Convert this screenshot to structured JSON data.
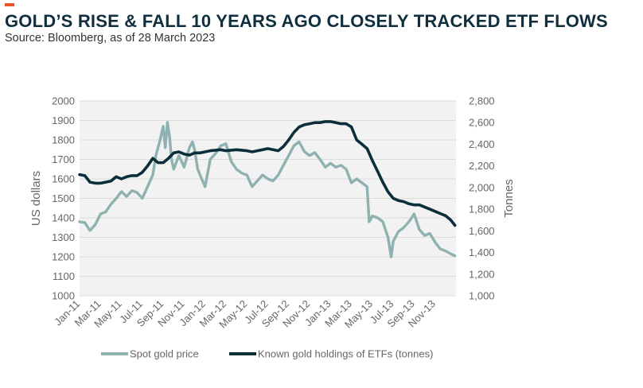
{
  "header": {
    "title": "GOLD’S RISE & FALL 10 YEARS AGO CLOSELY TRACKED ETF FLOWS",
    "subtitle": "Source: Bloomberg, as of 28 March 2023"
  },
  "colors": {
    "accent": "#e5542a",
    "title": "#0f2e3e",
    "text": "#333333",
    "tick": "#666666",
    "plot_bg": "#f2f2f2",
    "grid": "#dcdcdc",
    "gold_series": "#8fb1b0",
    "etf_series": "#0b2f3a"
  },
  "chart_data": {
    "type": "line",
    "title": "GOLD’S RISE & FALL 10 YEARS AGO CLOSELY TRACKED ETF FLOWS",
    "xlabel": "",
    "ylabel": "US dollars",
    "y2label": "Tonnes",
    "ylim": [
      1000,
      2000
    ],
    "y2lim": [
      1000,
      2800
    ],
    "yticks": [
      "1000",
      "1100",
      "1200",
      "1300",
      "1400",
      "1500",
      "1600",
      "1700",
      "1800",
      "1900",
      "2000"
    ],
    "y2ticks": [
      "1,000",
      "1,200",
      "1,400",
      "1,600",
      "1,800",
      "2,000",
      "2,200",
      "2,400",
      "2,600",
      "2,800"
    ],
    "xlim": [
      0,
      36
    ],
    "xticks": [
      "Jan-11",
      "Mar-11",
      "May-11",
      "Jul-11",
      "Sep-11",
      "Nov-11",
      "Jan-12",
      "Mar-12",
      "May-12",
      "Jul-12",
      "Sep-12",
      "Nov-12",
      "Jan-13",
      "Mar-13",
      "May-13",
      "Jul-13",
      "Sep-13",
      "Nov-13"
    ],
    "grid": true,
    "legend_position": "bottom",
    "series": [
      {
        "name": "Spot gold price",
        "axis": "left",
        "x": [
          0,
          0.5,
          1,
          1.5,
          2,
          2.5,
          3,
          3.5,
          4,
          4.5,
          5,
          5.5,
          6,
          6.5,
          7,
          7.3,
          7.7,
          8,
          8.2,
          8.4,
          8.6,
          8.8,
          9,
          9.5,
          10,
          10.5,
          10.8,
          11,
          11.3,
          11.6,
          12,
          12.5,
          13,
          13.5,
          14,
          14.5,
          15,
          15.5,
          16,
          16.5,
          17,
          17.5,
          18,
          18.5,
          19,
          19.5,
          20,
          20.5,
          21,
          21.5,
          22,
          22.5,
          23,
          23.5,
          24,
          24.5,
          25,
          25.5,
          26,
          26.5,
          27,
          27.5,
          27.7,
          28,
          28.5,
          29,
          29.5,
          29.8,
          30,
          30.5,
          31,
          31.5,
          32,
          32.5,
          33,
          33.5,
          34,
          34.5,
          35,
          35.5,
          35.9
        ],
        "values": [
          1380,
          1375,
          1335,
          1365,
          1420,
          1430,
          1470,
          1500,
          1535,
          1510,
          1540,
          1530,
          1500,
          1560,
          1620,
          1720,
          1800,
          1870,
          1760,
          1890,
          1820,
          1700,
          1650,
          1720,
          1660,
          1760,
          1790,
          1750,
          1650,
          1610,
          1560,
          1700,
          1730,
          1770,
          1780,
          1690,
          1650,
          1630,
          1620,
          1560,
          1590,
          1620,
          1600,
          1590,
          1620,
          1670,
          1720,
          1770,
          1790,
          1740,
          1720,
          1735,
          1700,
          1660,
          1680,
          1660,
          1670,
          1650,
          1580,
          1600,
          1580,
          1560,
          1380,
          1410,
          1400,
          1380,
          1300,
          1200,
          1280,
          1330,
          1350,
          1380,
          1420,
          1340,
          1310,
          1320,
          1275,
          1240,
          1230,
          1215,
          1205
        ]
      },
      {
        "name": "Known gold holdings of ETFs (tonnes)",
        "axis": "right",
        "x": [
          0,
          0.5,
          1,
          1.5,
          2,
          2.5,
          3,
          3.5,
          4,
          4.5,
          5,
          5.5,
          6,
          6.5,
          7,
          7.5,
          8,
          8.5,
          9,
          9.5,
          10,
          10.5,
          11,
          11.5,
          12,
          12.5,
          13,
          13.5,
          14,
          14.5,
          15,
          15.5,
          16,
          16.5,
          17,
          17.5,
          18,
          18.5,
          19,
          19.5,
          20,
          20.5,
          21,
          21.5,
          22,
          22.5,
          23,
          23.5,
          24,
          24.5,
          25,
          25.5,
          26,
          26.5,
          27,
          27.5,
          28,
          28.5,
          29,
          29.5,
          30,
          30.5,
          31,
          31.5,
          32,
          32.5,
          33,
          33.5,
          34,
          34.5,
          35,
          35.5,
          35.9
        ],
        "values": [
          2120,
          2110,
          2050,
          2040,
          2040,
          2050,
          2060,
          2100,
          2080,
          2100,
          2110,
          2110,
          2140,
          2200,
          2270,
          2230,
          2230,
          2270,
          2320,
          2330,
          2310,
          2300,
          2320,
          2320,
          2330,
          2340,
          2345,
          2350,
          2340,
          2345,
          2350,
          2345,
          2340,
          2330,
          2340,
          2350,
          2360,
          2350,
          2340,
          2380,
          2440,
          2510,
          2560,
          2580,
          2590,
          2600,
          2600,
          2610,
          2610,
          2600,
          2590,
          2590,
          2560,
          2440,
          2400,
          2360,
          2250,
          2150,
          2050,
          1960,
          1900,
          1880,
          1870,
          1850,
          1840,
          1840,
          1820,
          1800,
          1780,
          1760,
          1740,
          1700,
          1650
        ]
      }
    ]
  },
  "legend": {
    "items": [
      "Spot gold price",
      "Known gold holdings of ETFs (tonnes)"
    ]
  }
}
